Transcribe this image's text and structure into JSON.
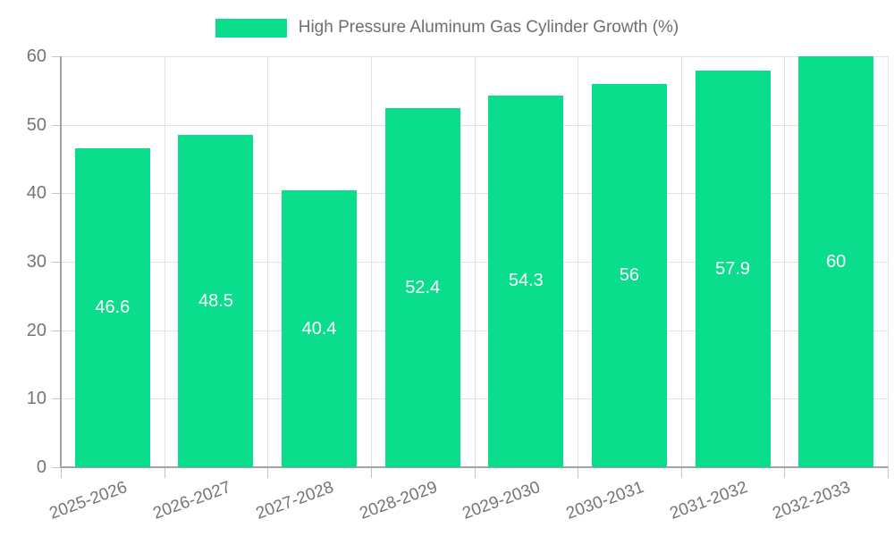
{
  "legend": {
    "label": "High Pressure Aluminum Gas Cylinder Growth (%)"
  },
  "colors": {
    "bar": "#0ade8d",
    "bar_label_text": "#ffffff",
    "axis_line": "#a3a3a3",
    "grid_line": "#e2e2e2",
    "tick_mark": "#c4c4c4",
    "tick_label_text": "#757575",
    "legend_text": "#6e6e6e",
    "background": "#ffffff"
  },
  "chart_data": {
    "type": "bar",
    "title": "",
    "legend_entries": [
      "High Pressure Aluminum Gas Cylinder Growth (%)"
    ],
    "legend_position": "top-center",
    "categories": [
      "2025-2026",
      "2026-2027",
      "2027-2028",
      "2028-2029",
      "2029-2030",
      "2030-2031",
      "2031-2032",
      "2032-2033"
    ],
    "values": [
      46.6,
      48.5,
      40.4,
      52.4,
      54.3,
      56,
      57.9,
      60
    ],
    "bar_value_labels": [
      "46.6",
      "48.5",
      "40.4",
      "52.4",
      "54.3",
      "56",
      "57.9",
      "60"
    ],
    "xlabel": "",
    "ylabel": "",
    "ylim": [
      0,
      60
    ],
    "yticks": [
      0,
      10,
      20,
      30,
      40,
      50,
      60
    ],
    "grid": true,
    "x_label_rotation_deg": -20
  }
}
